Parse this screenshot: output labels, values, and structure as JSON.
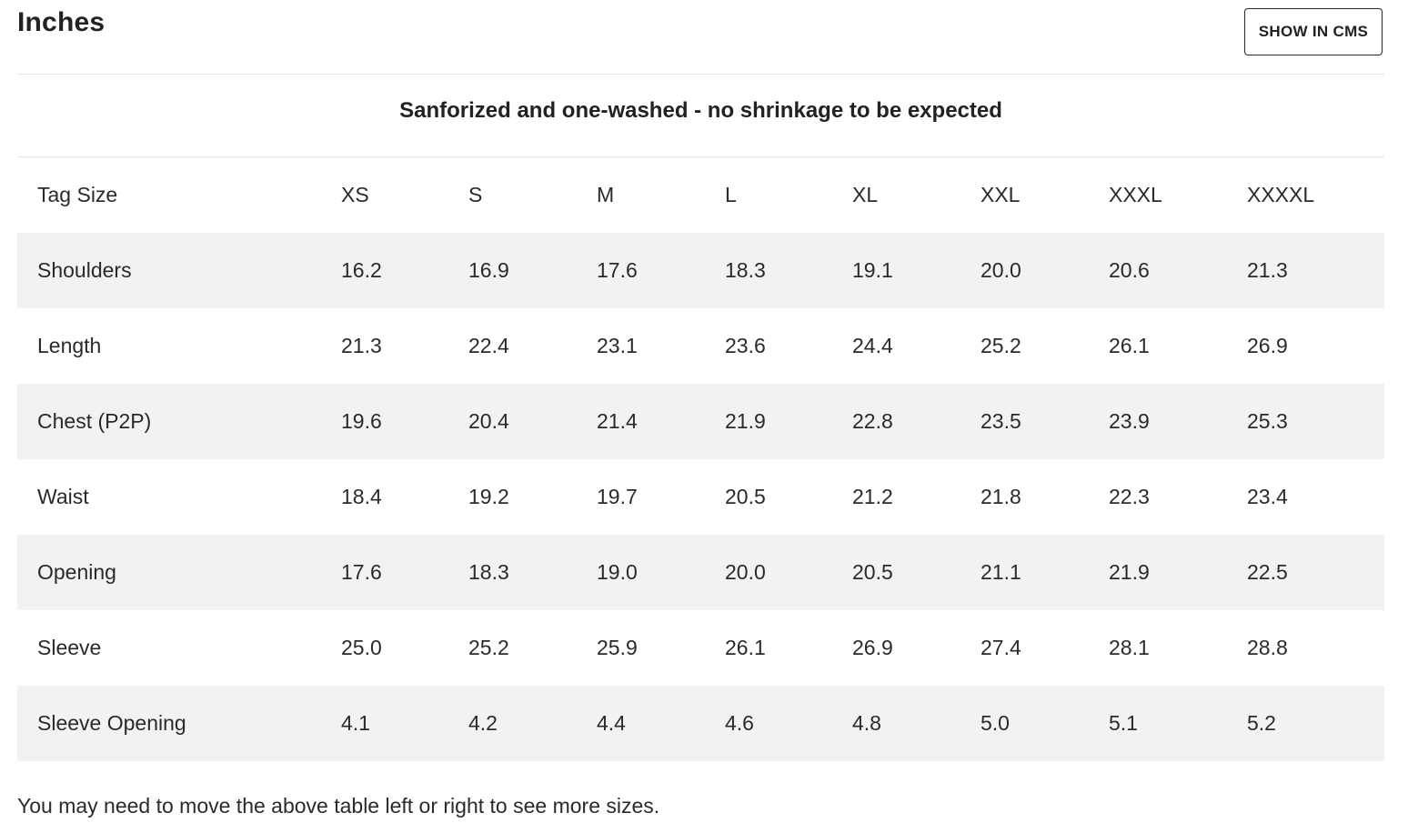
{
  "header": {
    "title": "Inches",
    "cms_button_label": "SHOW IN CMS"
  },
  "note": "Sanforized and one-washed - no shrinkage to be expected",
  "table": {
    "header": {
      "label": "Tag Size",
      "sizes": [
        "XS",
        "S",
        "M",
        "L",
        "XL",
        "XXL",
        "XXXL",
        "XXXXL"
      ]
    },
    "rows": [
      {
        "label": "Shoulders",
        "values": [
          "16.2",
          "16.9",
          "17.6",
          "18.3",
          "19.1",
          "20.0",
          "20.6",
          "21.3"
        ]
      },
      {
        "label": "Length",
        "values": [
          "21.3",
          "22.4",
          "23.1",
          "23.6",
          "24.4",
          "25.2",
          "26.1",
          "26.9"
        ]
      },
      {
        "label": "Chest (P2P)",
        "values": [
          "19.6",
          "20.4",
          "21.4",
          "21.9",
          "22.8",
          "23.5",
          "23.9",
          "25.3"
        ]
      },
      {
        "label": "Waist",
        "values": [
          "18.4",
          "19.2",
          "19.7",
          "20.5",
          "21.2",
          "21.8",
          "22.3",
          "23.4"
        ]
      },
      {
        "label": "Opening",
        "values": [
          "17.6",
          "18.3",
          "19.0",
          "20.0",
          "20.5",
          "21.1",
          "21.9",
          "22.5"
        ]
      },
      {
        "label": "Sleeve",
        "values": [
          "25.0",
          "25.2",
          "25.9",
          "26.1",
          "26.9",
          "27.4",
          "28.1",
          "28.8"
        ]
      },
      {
        "label": "Sleeve Opening",
        "values": [
          "4.1",
          "4.2",
          "4.4",
          "4.6",
          "4.8",
          "5.0",
          "5.1",
          "5.2"
        ]
      }
    ]
  },
  "footer_text": "You may need to move the above table left or right to see more sizes."
}
